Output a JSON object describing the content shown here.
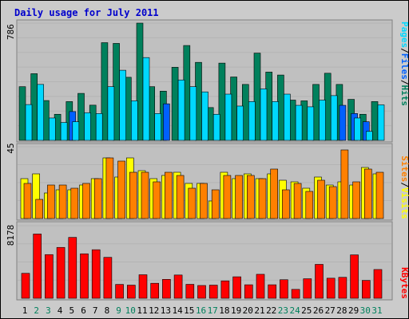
{
  "title": "Daily usage for July 2011",
  "colors": {
    "frame_bg": "#cbcbcb",
    "plot_bg": "#c0c0c0",
    "title": "#0000cc",
    "hits": "#00805c",
    "files": "#0060ff",
    "pages": "#00d8ff",
    "visits": "#ffff00",
    "sites": "#ff8000",
    "kbytes": "#ff0000",
    "weekday": "#000000",
    "weekend": "#00805c"
  },
  "chart_data": [
    {
      "type": "bar",
      "panel": "top",
      "ymax_label": "786",
      "ylim": [
        0,
        786
      ],
      "legend": [
        {
          "text": "Pages",
          "color": "#00d8ff"
        },
        {
          "text": "/",
          "color": "#000000"
        },
        {
          "text": "Files",
          "color": "#0060ff"
        },
        {
          "text": "/",
          "color": "#000000"
        },
        {
          "text": "Hits",
          "color": "#00805c"
        }
      ],
      "series": [
        {
          "name": "Hits",
          "values": [
            360,
            447,
            267,
            175,
            260,
            315,
            236,
            655,
            650,
            423,
            786,
            360,
            330,
            490,
            636,
            523,
            220,
            518,
            425,
            375,
            585,
            458,
            438,
            270,
            265,
            375,
            450,
            375,
            275,
            175,
            260
          ]
        },
        {
          "name": "Files",
          "values": [
            0,
            0,
            0,
            0,
            193,
            0,
            0,
            0,
            0,
            0,
            0,
            0,
            245,
            0,
            0,
            0,
            0,
            0,
            0,
            0,
            0,
            0,
            0,
            0,
            0,
            0,
            0,
            235,
            180,
            125,
            0
          ]
        },
        {
          "name": "Pages",
          "values": [
            240,
            375,
            150,
            120,
            125,
            185,
            180,
            360,
            470,
            265,
            555,
            180,
            0,
            405,
            360,
            325,
            175,
            310,
            230,
            260,
            345,
            260,
            310,
            235,
            225,
            270,
            300,
            0,
            150,
            60,
            238
          ]
        }
      ]
    },
    {
      "type": "bar",
      "panel": "middle",
      "ymax_label": "45",
      "ylim": [
        0,
        45
      ],
      "legend": [
        {
          "text": "Sites",
          "color": "#ff8000"
        },
        {
          "text": "/",
          "color": "#000000"
        },
        {
          "text": "Visits",
          "color": "#ffff00"
        }
      ],
      "series": [
        {
          "name": "Visits",
          "values": [
            25,
            28,
            16,
            18,
            18,
            21,
            25,
            38,
            26,
            38,
            30,
            25,
            27,
            29,
            22,
            22,
            11,
            29,
            25,
            28,
            25,
            28,
            24,
            23,
            19,
            26,
            21,
            23,
            21,
            32,
            28
          ]
        },
        {
          "name": "Sites",
          "values": [
            22,
            12,
            21,
            21,
            19,
            22,
            25,
            38,
            36,
            29,
            29,
            23,
            29,
            27,
            19,
            22,
            18,
            27,
            27,
            27,
            25,
            31,
            18,
            22,
            17,
            24,
            20,
            43,
            23,
            31,
            29
          ]
        }
      ]
    },
    {
      "type": "bar",
      "panel": "bottom",
      "ymax_label": "8178",
      "ylim": [
        0,
        8178
      ],
      "legend": [
        {
          "text": "KBytes",
          "color": "#ff0000"
        }
      ],
      "series": [
        {
          "name": "KBytes",
          "values": [
            2810,
            7240,
            4920,
            5730,
            6860,
            5010,
            5470,
            4610,
            1560,
            1480,
            2650,
            1690,
            2130,
            2620,
            1570,
            1440,
            1480,
            1960,
            2420,
            1520,
            2700,
            1520,
            2090,
            1000,
            2200,
            3820,
            2260,
            2360,
            4890,
            2010,
            3240
          ]
        }
      ]
    }
  ],
  "x_labels": [
    "1",
    "2",
    "3",
    "4",
    "5",
    "6",
    "7",
    "8",
    "9",
    "10",
    "11",
    "12",
    "13",
    "14",
    "15",
    "16",
    "17",
    "18",
    "19",
    "20",
    "21",
    "22",
    "23",
    "24",
    "25",
    "26",
    "27",
    "28",
    "29",
    "30",
    "31"
  ],
  "weekend_days": [
    2,
    3,
    9,
    10,
    16,
    17,
    23,
    24,
    30,
    31
  ]
}
